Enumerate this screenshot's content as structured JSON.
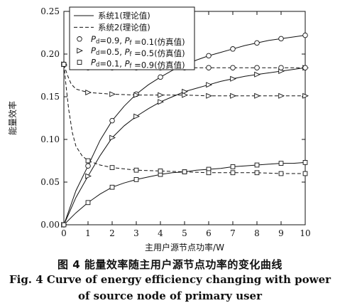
{
  "figure": {
    "caption_zh": "图 4   能量效率随主用户源节点功率的变化曲线",
    "caption_en_line1": "Fig. 4   Curve of energy efficiency changing with power",
    "caption_en_line2": "of source node of primary user"
  },
  "chart_data": {
    "type": "line",
    "title": "",
    "xlabel": "主用户源节点功率/W",
    "ylabel": "能量效率",
    "xlim": [
      0,
      10
    ],
    "ylim": [
      0,
      0.25
    ],
    "x_ticks": [
      0,
      1,
      2,
      3,
      4,
      5,
      6,
      7,
      8,
      9,
      10
    ],
    "y_ticks": [
      0.0,
      0.05,
      0.1,
      0.15,
      0.2,
      0.25
    ],
    "y_tick_labels": [
      "0.00",
      "0.05",
      "0.10",
      "0.15",
      "0.20",
      "0.25"
    ],
    "grid": false,
    "legend_position": "top-left",
    "legend": [
      {
        "label": "系统1(理论值)",
        "style": "solid"
      },
      {
        "label": "系统2(理论值)",
        "style": "dashed"
      },
      {
        "label": "Pd=0.9, Pf =0.1(仿真值)",
        "marker": "circle",
        "p_d": "0.9",
        "p_f": "0.1",
        "suffix": "(仿真值)"
      },
      {
        "label": "Pd=0.5, Pf =0.5(仿真值)",
        "marker": "triangle",
        "p_d": "0.5",
        "p_f": "0.5",
        "suffix": "(仿真值)"
      },
      {
        "label": "Pd=0.1, Pf =0.9(仿真值)",
        "marker": "square",
        "p_d": "0.1",
        "p_f": "0.9",
        "suffix": "(仿真值)"
      }
    ],
    "series": [
      {
        "system": "系统1(理论值)",
        "style": "solid",
        "marker": "circle",
        "group": "Pd=0.9, Pf =0.1(仿真值)",
        "x": [
          0,
          0.5,
          1,
          1.5,
          2,
          2.5,
          3,
          3.5,
          4,
          4.5,
          5,
          5.5,
          6,
          6.5,
          7,
          7.5,
          8,
          8.5,
          9,
          9.5,
          10
        ],
        "y": [
          0,
          0.04,
          0.069,
          0.099,
          0.122,
          0.139,
          0.153,
          0.164,
          0.173,
          0.181,
          0.187,
          0.193,
          0.198,
          0.202,
          0.206,
          0.21,
          0.213,
          0.216,
          0.218,
          0.22,
          0.222
        ],
        "marker_x": [
          0,
          1,
          2,
          3,
          4,
          5,
          6,
          7,
          8,
          9,
          10
        ],
        "marker_y": [
          0,
          0.069,
          0.122,
          0.153,
          0.173,
          0.187,
          0.198,
          0.206,
          0.213,
          0.218,
          0.222
        ]
      },
      {
        "system": "系统1(理论值)",
        "style": "solid",
        "marker": "triangle",
        "group": "Pd=0.5, Pf =0.5(仿真值)",
        "x": [
          0,
          0.5,
          1,
          1.5,
          2,
          2.5,
          3,
          3.5,
          4,
          4.5,
          5,
          5.5,
          6,
          6.5,
          7,
          7.5,
          8,
          8.5,
          9,
          9.5,
          10
        ],
        "y": [
          0,
          0.032,
          0.057,
          0.081,
          0.102,
          0.116,
          0.127,
          0.136,
          0.144,
          0.15,
          0.156,
          0.16,
          0.164,
          0.168,
          0.171,
          0.174,
          0.176,
          0.178,
          0.18,
          0.182,
          0.184
        ],
        "marker_x": [
          0,
          1,
          2,
          3,
          4,
          5,
          6,
          7,
          8,
          9,
          10
        ],
        "marker_y": [
          0,
          0.057,
          0.102,
          0.127,
          0.144,
          0.156,
          0.164,
          0.171,
          0.176,
          0.18,
          0.184
        ]
      },
      {
        "system": "系统1(理论值)",
        "style": "solid",
        "marker": "square",
        "group": "Pd=0.1, Pf =0.9(仿真值)",
        "x": [
          0,
          0.5,
          1,
          1.5,
          2,
          2.5,
          3,
          3.5,
          4,
          4.5,
          5,
          5.5,
          6,
          6.5,
          7,
          7.5,
          8,
          8.5,
          9,
          9.5,
          10
        ],
        "y": [
          0,
          0.014,
          0.026,
          0.036,
          0.044,
          0.049,
          0.053,
          0.056,
          0.059,
          0.061,
          0.062,
          0.064,
          0.065,
          0.066,
          0.068,
          0.069,
          0.07,
          0.071,
          0.072,
          0.072,
          0.073
        ],
        "marker_x": [
          0,
          1,
          2,
          3,
          4,
          5,
          6,
          7,
          8,
          9,
          10
        ],
        "marker_y": [
          0,
          0.026,
          0.044,
          0.053,
          0.059,
          0.062,
          0.065,
          0.068,
          0.07,
          0.072,
          0.073
        ]
      },
      {
        "system": "系统2(理论值)",
        "style": "dashed",
        "marker": "circle",
        "group": "Pd=0.9, Pf =0.1(仿真值)",
        "x": [
          0,
          0.15,
          0.3,
          0.5,
          0.75,
          1,
          1.5,
          2,
          3,
          4,
          5,
          6,
          7,
          8,
          9,
          10
        ],
        "y": [
          0.188,
          0.186,
          0.185,
          0.184,
          0.184,
          0.184,
          0.184,
          0.184,
          0.184,
          0.184,
          0.184,
          0.184,
          0.184,
          0.184,
          0.184,
          0.184
        ],
        "marker_x": [
          0,
          1,
          2,
          3,
          4,
          5,
          6,
          7,
          8,
          9,
          10
        ],
        "marker_y": [
          0.188,
          0.184,
          0.184,
          0.184,
          0.184,
          0.184,
          0.184,
          0.184,
          0.184,
          0.184,
          0.184
        ]
      },
      {
        "system": "系统2(理论值)",
        "style": "dashed",
        "marker": "triangle",
        "group": "Pd=0.5, Pf =0.5(仿真值)",
        "x": [
          0,
          0.15,
          0.3,
          0.5,
          0.75,
          1,
          1.5,
          2,
          3,
          4,
          5,
          6,
          7,
          8,
          9,
          10
        ],
        "y": [
          0.188,
          0.175,
          0.165,
          0.159,
          0.157,
          0.155,
          0.154,
          0.153,
          0.152,
          0.152,
          0.152,
          0.151,
          0.151,
          0.151,
          0.151,
          0.151
        ],
        "marker_x": [
          0,
          1,
          2,
          3,
          4,
          5,
          6,
          7,
          8,
          9,
          10
        ],
        "marker_y": [
          0.188,
          0.155,
          0.153,
          0.152,
          0.152,
          0.152,
          0.151,
          0.151,
          0.151,
          0.151,
          0.151
        ]
      },
      {
        "system": "系统2(理论值)",
        "style": "dashed",
        "marker": "square",
        "group": "Pd=0.1, Pf =0.9(仿真值)",
        "x": [
          0,
          0.1,
          0.2,
          0.35,
          0.5,
          0.75,
          1,
          1.5,
          2,
          3,
          4,
          5,
          6,
          7,
          8,
          9,
          10
        ],
        "y": [
          0.188,
          0.16,
          0.135,
          0.108,
          0.092,
          0.081,
          0.075,
          0.07,
          0.067,
          0.064,
          0.063,
          0.062,
          0.061,
          0.061,
          0.061,
          0.06,
          0.06
        ],
        "marker_x": [
          0,
          1,
          2,
          3,
          4,
          5,
          6,
          7,
          8,
          9,
          10
        ],
        "marker_y": [
          0.188,
          0.075,
          0.067,
          0.064,
          0.063,
          0.062,
          0.061,
          0.061,
          0.061,
          0.06,
          0.06
        ]
      }
    ]
  }
}
